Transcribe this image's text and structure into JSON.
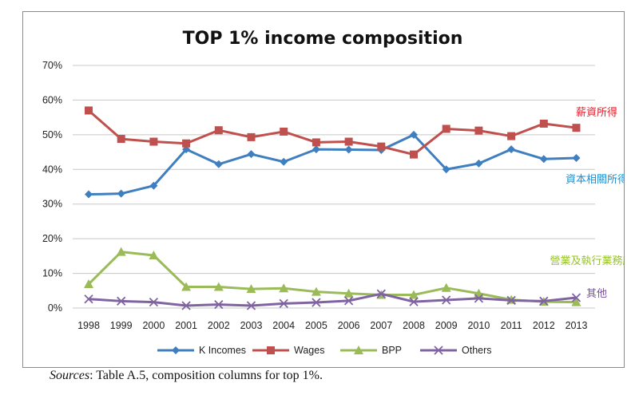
{
  "chart_data": {
    "type": "line",
    "title": "TOP 1% income composition",
    "xlabel": "",
    "ylabel": "",
    "x": [
      "1998",
      "1999",
      "2000",
      "2001",
      "2002",
      "2003",
      "2004",
      "2005",
      "2006",
      "2007",
      "2008",
      "2009",
      "2010",
      "2011",
      "2012",
      "2013"
    ],
    "ylim": [
      0,
      70
    ],
    "yticks": [
      0,
      10,
      20,
      30,
      40,
      50,
      60,
      70
    ],
    "ytick_labels": [
      "0%",
      "10%",
      "20%",
      "30%",
      "40%",
      "50%",
      "60%",
      "70%"
    ],
    "grid": "horizontal",
    "legend_position": "bottom",
    "series": [
      {
        "name": "K Incomes",
        "color": "#3f7fc0",
        "marker": "diamond",
        "values": [
          32.8,
          33.0,
          35.3,
          45.8,
          41.5,
          44.4,
          42.2,
          45.8,
          45.7,
          45.6,
          50.0,
          40.0,
          41.7,
          45.8,
          43.0,
          43.3
        ]
      },
      {
        "name": "Wages",
        "color": "#c0504d",
        "marker": "square",
        "values": [
          57.0,
          48.8,
          48.0,
          47.5,
          51.3,
          49.3,
          50.9,
          47.8,
          48.0,
          46.6,
          44.3,
          51.7,
          51.2,
          49.6,
          53.2,
          52.0
        ]
      },
      {
        "name": "BPP",
        "color": "#9bbb59",
        "marker": "triangle",
        "values": [
          6.9,
          16.2,
          15.2,
          6.1,
          6.1,
          5.5,
          5.7,
          4.7,
          4.2,
          3.8,
          3.8,
          5.8,
          4.2,
          2.4,
          1.8,
          1.7
        ]
      },
      {
        "name": "Others",
        "color": "#8064a2",
        "marker": "x",
        "values": [
          2.6,
          2.0,
          1.7,
          0.7,
          1.0,
          0.7,
          1.3,
          1.6,
          2.1,
          4.1,
          1.8,
          2.3,
          2.8,
          2.2,
          2.0,
          3.0
        ]
      }
    ],
    "annotations": [
      {
        "text": "薪資所得",
        "color": "#e0202e"
      },
      {
        "text": "資本相關所得",
        "color": "#1a8fd0"
      },
      {
        "text": "營業及執行業務所得",
        "color": "#98c32a"
      },
      {
        "text": "其他",
        "color": "#7a4fa3"
      }
    ]
  },
  "source": {
    "label": "Sources",
    "text": ": Table A.5, composition columns for top 1%."
  }
}
